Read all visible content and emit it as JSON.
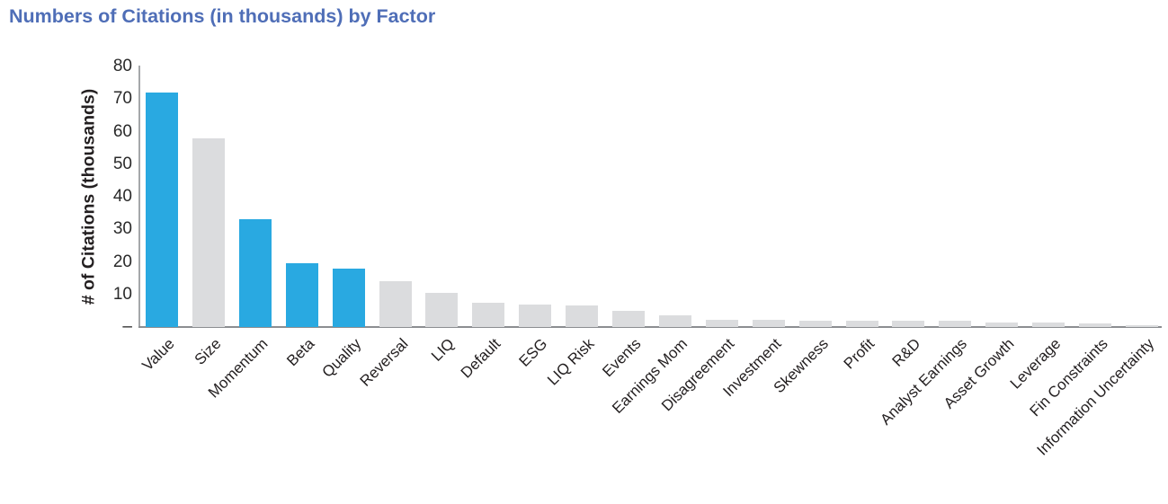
{
  "page": {
    "background_color": "#FFFFFF"
  },
  "chart_data": {
    "type": "bar",
    "title": "Numbers of Citations (in thousands) by Factor",
    "title_color": "#4F6EB7",
    "xlabel": "",
    "ylabel": "# of Citations (thousands)",
    "ylim": [
      0,
      80
    ],
    "ytick_interval": 10,
    "ytick_labels": [
      "–",
      "10",
      "20",
      "30",
      "40",
      "50",
      "60",
      "70",
      "80"
    ],
    "grid": false,
    "legend": "none",
    "x_label_rotation_degrees": 45,
    "categories": [
      "Value",
      "Size",
      "Momentum",
      "Beta",
      "Quality",
      "Reversal",
      "LIQ",
      "Default",
      "ESG",
      "LIQ Risk",
      "Events",
      "Earnings Mom",
      "Disagreement",
      "Investment",
      "Skewness",
      "Profit",
      "R&D",
      "Analyst Earnings",
      "Asset Growth",
      "Leverage",
      "Fin Constraints",
      "Information Uncertainty"
    ],
    "values": [
      72,
      58,
      33,
      19.5,
      18,
      14,
      10.5,
      7.5,
      7,
      6.5,
      5,
      3.7,
      2.2,
      2.2,
      2,
      2,
      2,
      1.8,
      1.5,
      1.4,
      1.2,
      0.5
    ],
    "highlighted_categories": [
      "Value",
      "Momentum",
      "Beta",
      "Quality"
    ],
    "highlight_color": "#29A9E1",
    "default_bar_color": "#DBDCDE",
    "axis_line_color": "#A5A7AA",
    "text_color": "#231F20"
  }
}
